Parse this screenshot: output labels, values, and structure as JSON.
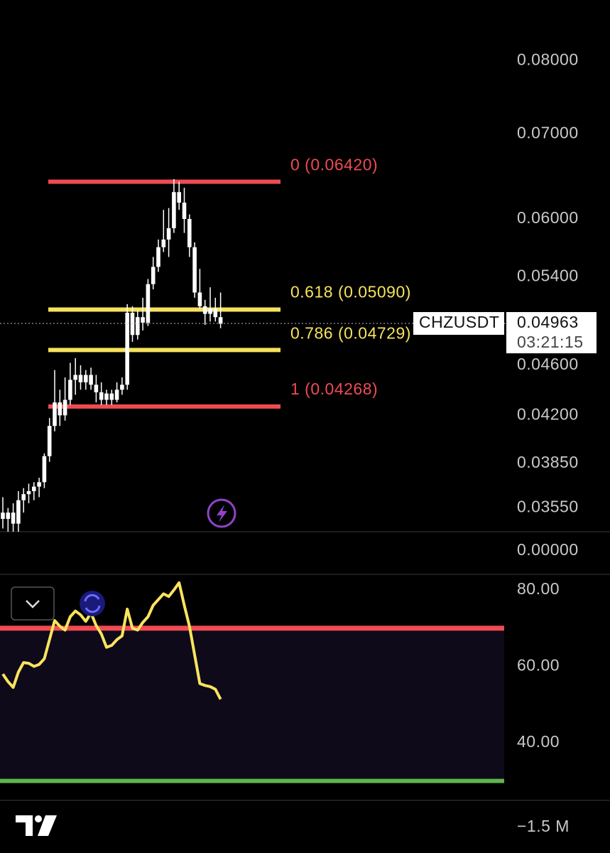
{
  "chart_data": [
    {
      "type": "candlestick",
      "symbol": "CHZUSDT",
      "log_scale": true,
      "color": "#ffffff",
      "last_price": {
        "value": 0.04963,
        "label": "0.04963"
      },
      "countdown": "03:21:15",
      "ylim": [
        0.034,
        0.0893
      ],
      "yticks": [
        {
          "value": 0.08,
          "label": "0.08000"
        },
        {
          "value": 0.07,
          "label": "0.07000"
        },
        {
          "value": 0.06,
          "label": "0.06000"
        },
        {
          "value": 0.054,
          "label": "0.05400"
        },
        {
          "value": 0.046,
          "label": "0.04600"
        },
        {
          "value": 0.042,
          "label": "0.04200"
        },
        {
          "value": 0.0385,
          "label": "0.03850"
        },
        {
          "value": 0.0355,
          "label": "0.03550"
        }
      ],
      "open": [
        0.0352,
        0.0348,
        0.0352,
        0.0345,
        0.036,
        0.0364,
        0.0366,
        0.0369,
        0.0372,
        0.039,
        0.0412,
        0.043,
        0.042,
        0.0432,
        0.0448,
        0.0452,
        0.0446,
        0.0452,
        0.0444,
        0.0438,
        0.0432,
        0.0437,
        0.0432,
        0.044,
        0.0444,
        0.0506,
        0.0486,
        0.0502,
        0.0497,
        0.0533,
        0.055,
        0.057,
        0.0578,
        0.059,
        0.063,
        0.0618,
        0.06,
        0.057,
        0.0525,
        0.0512,
        0.0505,
        0.051,
        0.0502
      ],
      "high": [
        0.0362,
        0.0355,
        0.0358,
        0.0366,
        0.0368,
        0.0371,
        0.0372,
        0.0375,
        0.0392,
        0.0418,
        0.0456,
        0.044,
        0.045,
        0.0462,
        0.0466,
        0.046,
        0.0456,
        0.0458,
        0.0452,
        0.0446,
        0.044,
        0.044,
        0.0446,
        0.045,
        0.0514,
        0.0512,
        0.0508,
        0.052,
        0.0538,
        0.056,
        0.0578,
        0.061,
        0.0612,
        0.0645,
        0.0642,
        0.0635,
        0.0605,
        0.0575,
        0.0548,
        0.0518,
        0.053,
        0.052,
        0.0525
      ],
      "low": [
        0.0342,
        0.034,
        0.034,
        0.034,
        0.0352,
        0.0358,
        0.036,
        0.0362,
        0.0368,
        0.0386,
        0.0408,
        0.0412,
        0.0416,
        0.0428,
        0.0436,
        0.044,
        0.044,
        0.044,
        0.043,
        0.0428,
        0.0428,
        0.0428,
        0.043,
        0.0436,
        0.044,
        0.048,
        0.0482,
        0.049,
        0.0494,
        0.0528,
        0.0545,
        0.0565,
        0.056,
        0.0585,
        0.061,
        0.0585,
        0.056,
        0.052,
        0.051,
        0.0495,
        0.0498,
        0.0498,
        0.0492
      ],
      "close": [
        0.0348,
        0.0352,
        0.0345,
        0.036,
        0.0364,
        0.0366,
        0.0369,
        0.0372,
        0.039,
        0.0412,
        0.043,
        0.042,
        0.0432,
        0.0448,
        0.0452,
        0.0446,
        0.0452,
        0.0444,
        0.0438,
        0.0432,
        0.0437,
        0.0432,
        0.044,
        0.0444,
        0.0506,
        0.0486,
        0.0502,
        0.0497,
        0.0533,
        0.055,
        0.057,
        0.0578,
        0.059,
        0.063,
        0.0618,
        0.06,
        0.057,
        0.0525,
        0.0512,
        0.0505,
        0.051,
        0.0502,
        0.0496
      ],
      "fib_levels": [
        {
          "label": "0 (0.06420)",
          "value": 0.0642,
          "color": "#ef4b52"
        },
        {
          "label": "0.618 (0.05090)",
          "value": 0.0509,
          "color": "#f6e35c"
        },
        {
          "label": "0.786 (0.04729)",
          "value": 0.04729,
          "color": "#f6e35c"
        },
        {
          "label": "1 (0.04268)",
          "value": 0.04268,
          "color": "#ef4b52"
        }
      ]
    },
    {
      "type": "line",
      "color": "#fbe45e",
      "ylim": [
        24.9,
        84.1
      ],
      "yticks": [
        {
          "value": 80,
          "label": "80.00"
        },
        {
          "value": 60,
          "label": "60.00"
        },
        {
          "value": 40,
          "label": "40.00"
        }
      ],
      "values": [
        58,
        56,
        54.5,
        58.5,
        61,
        60.8,
        60,
        60.5,
        62,
        67,
        72,
        70.5,
        69.5,
        73,
        74.5,
        73.5,
        71.8,
        74,
        70.7,
        68.5,
        65,
        65.5,
        67,
        68,
        75,
        70,
        69.5,
        71.5,
        73,
        76,
        77.5,
        79,
        78.3,
        80,
        81.9,
        76,
        70.5,
        63,
        55.5,
        55,
        54.7,
        54,
        51.4
      ],
      "upper_band": {
        "value": 70,
        "color": "#ef4b52"
      },
      "lower_band": {
        "value": 30,
        "color": "#5fb44f"
      }
    }
  ],
  "volume_pane": {
    "tick_label": "0.00000"
  },
  "footer": {
    "scale_label": "−1.5 M"
  }
}
